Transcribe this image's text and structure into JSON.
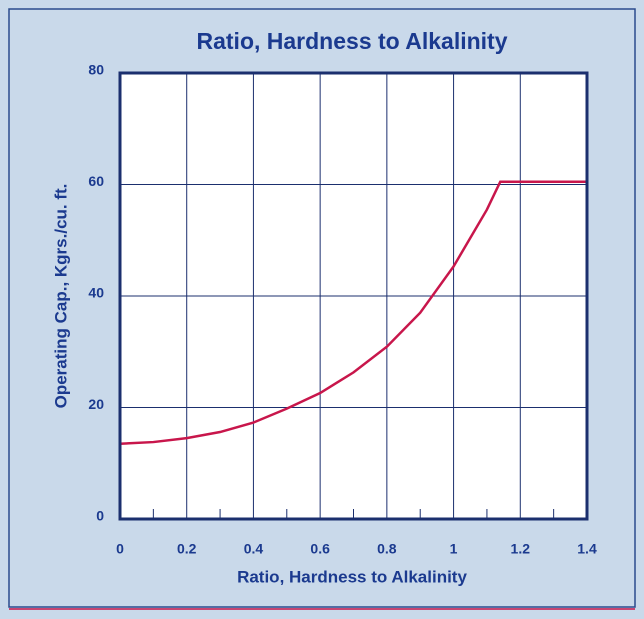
{
  "chart_data": {
    "type": "line",
    "title": "Ratio, Hardness to Alkalinity",
    "xlabel": "Ratio, Hardness to Alkalinity",
    "ylabel": "Operating Cap., Kgrs./cu. ft.",
    "x": [
      0,
      0.1,
      0.2,
      0.3,
      0.4,
      0.5,
      0.6,
      0.7,
      0.8,
      0.9,
      1.0,
      1.1,
      1.14,
      1.4
    ],
    "series": [
      {
        "name": "Operating Capacity",
        "color": "#c8164b",
        "values": [
          13.5,
          13.8,
          14.5,
          15.6,
          17.3,
          19.8,
          22.6,
          26.3,
          30.9,
          37,
          45.3,
          55.5,
          60.5,
          60.5
        ]
      }
    ],
    "xlim": [
      0,
      1.4
    ],
    "xticks": [
      0,
      0.2,
      0.4,
      0.6,
      0.8,
      1,
      1.2,
      1.4
    ],
    "xminorticks": [
      0.1,
      0.3,
      0.5,
      0.7,
      0.9,
      1.1,
      1.3
    ],
    "ylim": [
      0,
      80
    ],
    "yticks": [
      0,
      20,
      40,
      60,
      80
    ],
    "grid": true
  }
}
